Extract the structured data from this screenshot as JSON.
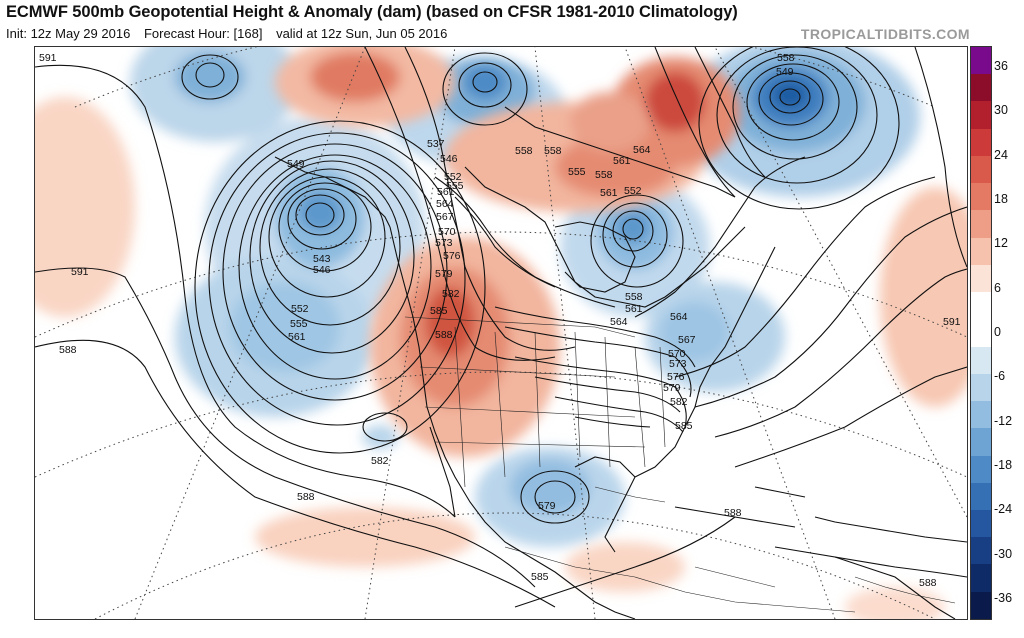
{
  "header": {
    "title": "ECMWF 500mb Geopotential Height & Anomaly (dam) (based on CFSR 1981-2010 Climatology)",
    "init": "Init: 12z May 29 2016",
    "forecast_hour": "Forecast Hour: [168]",
    "valid": "valid at 12z Sun, Jun 05 2016",
    "watermark": "TROPICALTIDBITS.COM"
  },
  "colorbar": {
    "labels": [
      "36",
      "30",
      "24",
      "18",
      "12",
      "6",
      "0",
      "-6",
      "-12",
      "-18",
      "-24",
      "-30",
      "-36"
    ],
    "colors": [
      "#7a0a8c",
      "#8c0d2a",
      "#b3202d",
      "#cc3a3a",
      "#d95a4a",
      "#e47a64",
      "#ee9d86",
      "#f6c2ad",
      "#fce3d7",
      "#ffffff",
      "#ffffff",
      "#d8e8f3",
      "#b7d4ea",
      "#93bde0",
      "#6ea4d4",
      "#4d8ac6",
      "#3570b4",
      "#24579f",
      "#183f84",
      "#0e2b68",
      "#0a1a4a"
    ]
  },
  "contour_labels": [
    {
      "text": "591"
    },
    {
      "text": "591"
    },
    {
      "text": "588"
    },
    {
      "text": "549"
    },
    {
      "text": "543"
    },
    {
      "text": "546"
    },
    {
      "text": "552"
    },
    {
      "text": "555"
    },
    {
      "text": "561"
    },
    {
      "text": "537"
    },
    {
      "text": "546"
    },
    {
      "text": "552"
    },
    {
      "text": "555"
    },
    {
      "text": "558"
    },
    {
      "text": "558"
    },
    {
      "text": "555"
    },
    {
      "text": "561"
    },
    {
      "text": "564"
    },
    {
      "text": "567"
    },
    {
      "text": "570"
    },
    {
      "text": "573"
    },
    {
      "text": "576"
    },
    {
      "text": "579"
    },
    {
      "text": "582"
    },
    {
      "text": "585"
    },
    {
      "text": "588"
    },
    {
      "text": "558"
    },
    {
      "text": "549"
    },
    {
      "text": "564"
    },
    {
      "text": "561"
    },
    {
      "text": "558"
    },
    {
      "text": "552"
    },
    {
      "text": "558"
    },
    {
      "text": "561"
    },
    {
      "text": "564"
    },
    {
      "text": "567"
    },
    {
      "text": "570"
    },
    {
      "text": "573"
    },
    {
      "text": "576"
    },
    {
      "text": "579"
    },
    {
      "text": "582"
    },
    {
      "text": "585"
    },
    {
      "text": "591"
    },
    {
      "text": "582"
    },
    {
      "text": "588"
    },
    {
      "text": "579"
    },
    {
      "text": "585"
    },
    {
      "text": "588"
    },
    {
      "text": "588"
    },
    {
      "text": "561"
    },
    {
      "text": "564"
    }
  ]
}
